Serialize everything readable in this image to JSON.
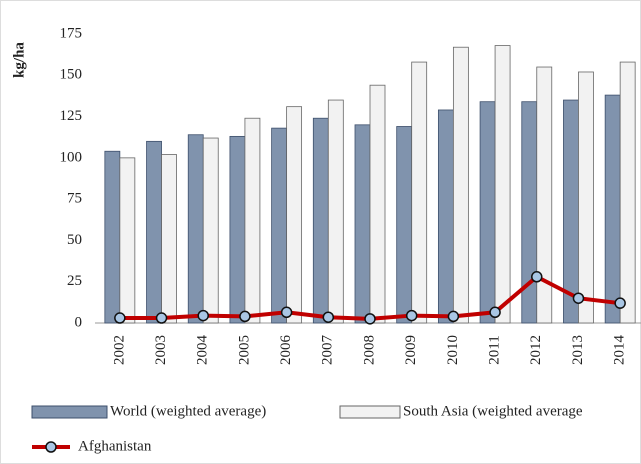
{
  "chart_data": {
    "type": "combo",
    "y_label": "kg/ha",
    "categories": [
      "2002",
      "2003",
      "2004",
      "2005",
      "2006",
      "2007",
      "2008",
      "2009",
      "2010",
      "2011",
      "2012",
      "2013",
      "2014"
    ],
    "series": [
      {
        "name": "World (weighted average)",
        "type": "bar",
        "color": "#8093ad",
        "values": [
          104,
          110,
          114,
          113,
          118,
          124,
          120,
          119,
          129,
          134,
          134,
          135,
          138
        ]
      },
      {
        "name": "South Asia (weighted average",
        "type": "bar",
        "color": "#f2f2f2",
        "values": [
          100,
          102,
          112,
          124,
          131,
          135,
          144,
          158,
          167,
          168,
          155,
          152,
          158
        ]
      },
      {
        "name": "Afghanistan",
        "type": "line",
        "color": "#c00000",
        "values": [
          3,
          3,
          4.5,
          4,
          6.5,
          3.5,
          2.5,
          4.5,
          4,
          6.5,
          28,
          15,
          12
        ]
      }
    ],
    "ylim": [
      0,
      175
    ],
    "yticks": [
      0,
      25,
      50,
      75,
      100,
      125,
      150,
      175
    ],
    "grid": false
  }
}
